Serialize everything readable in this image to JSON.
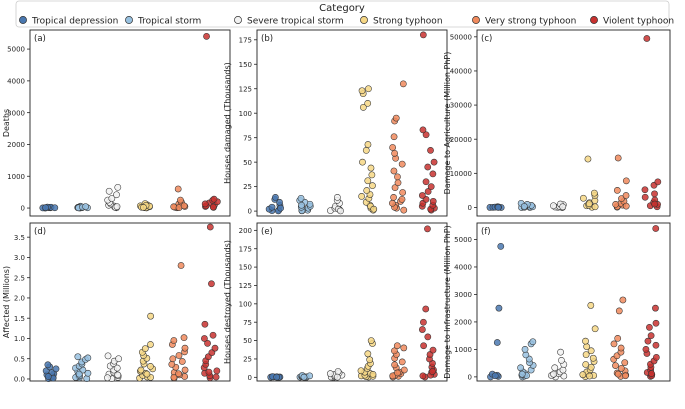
{
  "legend": {
    "title": "Category",
    "entries": [
      {
        "name": "Tropical depression",
        "color": "#4a78b0"
      },
      {
        "name": "Tropical storm",
        "color": "#98c1e0"
      },
      {
        "name": "Severe tropical storm",
        "color": "#f2f2f2"
      },
      {
        "name": "Strong typhoon",
        "color": "#f6d785"
      },
      {
        "name": "Very strong typhoon",
        "color": "#f08a5d"
      },
      {
        "name": "Violent typhoon",
        "color": "#c8312f"
      }
    ]
  },
  "chart_data": [
    {
      "type": "scatter",
      "panel": "(a)",
      "ylabel": "Deaths",
      "ylim": [
        -250,
        5600
      ],
      "yticks": [
        0,
        1000,
        2000,
        3000,
        4000,
        5000
      ],
      "yticklabels": [
        "0",
        "1000",
        "2000",
        "3000",
        "4000",
        "5000"
      ],
      "series": [
        {
          "name": "Tropical depression",
          "values": [
            2,
            5,
            8,
            12,
            18,
            25,
            30,
            10,
            4,
            15
          ]
        },
        {
          "name": "Tropical storm",
          "values": [
            3,
            8,
            15,
            25,
            40,
            55,
            12,
            20,
            6,
            30,
            10,
            45
          ]
        },
        {
          "name": "Severe tropical storm",
          "values": [
            10,
            30,
            60,
            90,
            130,
            180,
            250,
            300,
            420,
            530,
            650,
            20,
            45
          ]
        },
        {
          "name": "Strong typhoon",
          "values": [
            5,
            15,
            30,
            50,
            70,
            100,
            140,
            40,
            25,
            10,
            60,
            85,
            20
          ]
        },
        {
          "name": "Very strong typhoon",
          "values": [
            10,
            25,
            50,
            90,
            130,
            180,
            250,
            600,
            40,
            15,
            70
          ]
        },
        {
          "name": "Violent typhoon",
          "values": [
            20,
            50,
            100,
            160,
            200,
            240,
            280,
            30,
            70,
            130,
            5400
          ]
        }
      ]
    },
    {
      "type": "scatter",
      "panel": "(b)",
      "ylabel": "Houses damaged (Thousands)",
      "ylim": [
        -5,
        185
      ],
      "yticks": [
        0,
        25,
        50,
        75,
        100,
        125,
        150,
        175
      ],
      "yticklabels": [
        "0",
        "25",
        "50",
        "75",
        "100",
        "125",
        "150",
        "175"
      ],
      "series": [
        {
          "name": "Tropical depression",
          "values": [
            0.5,
            1,
            2,
            4,
            6,
            9,
            12,
            14,
            0.2,
            3
          ]
        },
        {
          "name": "Tropical storm",
          "values": [
            0.3,
            1,
            2,
            3,
            5,
            7,
            9,
            11,
            13,
            0.5,
            4,
            6
          ]
        },
        {
          "name": "Severe tropical storm",
          "values": [
            0.5,
            1.5,
            3,
            5,
            8,
            11,
            14,
            2,
            0.2
          ]
        },
        {
          "name": "Strong typhoon",
          "values": [
            1,
            3,
            6,
            9,
            13,
            17,
            21,
            26,
            31,
            37,
            44,
            50,
            62,
            68,
            106,
            110,
            120,
            123,
            125,
            5,
            2,
            15
          ]
        },
        {
          "name": "Very strong typhoon",
          "values": [
            1,
            3,
            6,
            10,
            14,
            19,
            24,
            29,
            35,
            41,
            48,
            54,
            59,
            65,
            76,
            92,
            95,
            130,
            4,
            8,
            12
          ]
        },
        {
          "name": "Violent typhoon",
          "values": [
            1,
            3,
            5,
            8,
            12,
            16,
            20,
            25,
            30,
            38,
            45,
            50,
            62,
            78,
            83,
            180,
            2,
            6,
            10
          ]
        }
      ]
    },
    {
      "type": "scatter",
      "panel": "(c)",
      "ylabel": "Damage to Agriculture (Million PhP)",
      "ylim": [
        -2500,
        52000
      ],
      "yticks": [
        0,
        10000,
        20000,
        30000,
        40000,
        50000
      ],
      "yticklabels": [
        "0",
        "10000",
        "20000",
        "30000",
        "40000",
        "50000"
      ],
      "series": [
        {
          "name": "Tropical depression",
          "values": [
            0,
            10,
            30,
            60,
            100,
            200,
            150,
            20
          ]
        },
        {
          "name": "Tropical storm",
          "values": [
            0,
            20,
            50,
            100,
            200,
            400,
            600,
            900,
            1200,
            300
          ]
        },
        {
          "name": "Severe tropical storm",
          "values": [
            0,
            30,
            80,
            150,
            300,
            500,
            800,
            1000,
            200
          ]
        },
        {
          "name": "Strong typhoon",
          "values": [
            50,
            200,
            500,
            900,
            1400,
            2000,
            2700,
            3500,
            4200,
            14200,
            600,
            1100
          ]
        },
        {
          "name": "Very strong typhoon",
          "values": [
            100,
            300,
            700,
            1200,
            1800,
            2600,
            3500,
            5000,
            7800,
            14500,
            900,
            400
          ]
        },
        {
          "name": "Violent typhoon",
          "values": [
            200,
            500,
            900,
            1500,
            2200,
            3000,
            4000,
            5200,
            6500,
            7500,
            49500,
            1000
          ]
        }
      ]
    },
    {
      "type": "scatter",
      "panel": "(d)",
      "ylabel": "Affected (Millions)",
      "ylim": [
        -0.05,
        3.85
      ],
      "yticks": [
        0,
        0.5,
        1,
        1.5,
        2,
        2.5,
        3,
        3.5
      ],
      "yticklabels": [
        "0.0",
        "0.5",
        "1.0",
        "1.5",
        "2.0",
        "2.5",
        "3.0",
        "3.5"
      ],
      "series": [
        {
          "name": "Tropical depression",
          "values": [
            0.01,
            0.03,
            0.05,
            0.08,
            0.1,
            0.13,
            0.16,
            0.2,
            0.25,
            0.3,
            0.35,
            0.02,
            0.06
          ]
        },
        {
          "name": "Tropical storm",
          "values": [
            0.01,
            0.03,
            0.06,
            0.1,
            0.14,
            0.18,
            0.22,
            0.27,
            0.32,
            0.37,
            0.42,
            0.48,
            0.52,
            0.55,
            0.04,
            0.08,
            0.12
          ]
        },
        {
          "name": "Severe tropical storm",
          "values": [
            0.01,
            0.04,
            0.08,
            0.12,
            0.17,
            0.22,
            0.27,
            0.32,
            0.38,
            0.44,
            0.5,
            0.57,
            0.03,
            0.1
          ]
        },
        {
          "name": "Strong typhoon",
          "values": [
            0.02,
            0.05,
            0.09,
            0.14,
            0.19,
            0.25,
            0.31,
            0.37,
            0.44,
            0.51,
            0.58,
            0.66,
            0.75,
            0.85,
            1.55,
            0.04,
            0.12,
            0.22
          ]
        },
        {
          "name": "Very strong typhoon",
          "values": [
            0.02,
            0.06,
            0.1,
            0.16,
            0.22,
            0.29,
            0.36,
            0.43,
            0.5,
            0.58,
            0.67,
            0.76,
            0.85,
            0.95,
            1.02,
            2.8,
            0.04,
            0.13
          ]
        },
        {
          "name": "Violent typhoon",
          "values": [
            0.03,
            0.08,
            0.14,
            0.2,
            0.28,
            0.36,
            0.45,
            0.55,
            0.65,
            0.76,
            0.88,
            1.0,
            1.08,
            1.35,
            2.35,
            3.75,
            0.05,
            0.17
          ]
        }
      ]
    },
    {
      "type": "scatter",
      "panel": "(e)",
      "ylabel": "Houses destroyed (Thousands)",
      "ylim": [
        -5,
        210
      ],
      "yticks": [
        0,
        25,
        50,
        75,
        100,
        125,
        150,
        175,
        200
      ],
      "yticklabels": [
        "0",
        "25",
        "50",
        "75",
        "100",
        "125",
        "150",
        "175",
        "200"
      ],
      "series": [
        {
          "name": "Tropical depression",
          "values": [
            0,
            0.2,
            0.4,
            0.6,
            0.8,
            1,
            0.1,
            0.3
          ]
        },
        {
          "name": "Tropical storm",
          "values": [
            0,
            0.3,
            0.6,
            1,
            1.5,
            2,
            2.5,
            0.2
          ]
        },
        {
          "name": "Severe tropical storm",
          "values": [
            0,
            0.5,
            1,
            2,
            3,
            4,
            5,
            6,
            8,
            0.3
          ]
        },
        {
          "name": "Strong typhoon",
          "values": [
            0.5,
            1,
            2,
            3,
            5,
            7,
            9,
            12,
            15,
            19,
            24,
            32,
            46,
            50,
            1.5,
            4
          ]
        },
        {
          "name": "Very strong typhoon",
          "values": [
            0.5,
            1.5,
            3,
            5,
            7,
            10,
            13,
            17,
            21,
            26,
            31,
            36,
            40,
            43,
            2,
            6
          ]
        },
        {
          "name": "Violent typhoon",
          "values": [
            0.5,
            2,
            4,
            7,
            10,
            14,
            19,
            25,
            31,
            37,
            43,
            55,
            65,
            75,
            93,
            202,
            3,
            8
          ]
        }
      ]
    },
    {
      "type": "scatter",
      "panel": "(f)",
      "ylabel": "Damage to Infrastructure (Million PhP)",
      "ylim": [
        -150,
        5600
      ],
      "yticks": [
        0,
        1000,
        2000,
        3000,
        4000,
        5000
      ],
      "yticklabels": [
        "0",
        "1000",
        "2000",
        "3000",
        "4000",
        "5000"
      ],
      "series": [
        {
          "name": "Tropical depression",
          "values": [
            0,
            20,
            60,
            100,
            1250,
            2500,
            4750,
            40
          ]
        },
        {
          "name": "Tropical storm",
          "values": [
            0,
            30,
            70,
            120,
            180,
            250,
            330,
            420,
            520,
            650,
            800,
            1000,
            1200,
            1280,
            50,
            100
          ]
        },
        {
          "name": "Severe tropical storm",
          "values": [
            0,
            30,
            70,
            120,
            180,
            250,
            330,
            450,
            600,
            900,
            50,
            100
          ]
        },
        {
          "name": "Strong typhoon",
          "values": [
            10,
            50,
            110,
            180,
            260,
            350,
            450,
            560,
            680,
            810,
            950,
            1100,
            1300,
            1750,
            2600,
            30,
            80
          ]
        },
        {
          "name": "Very strong typhoon",
          "values": [
            20,
            70,
            140,
            220,
            310,
            410,
            520,
            640,
            770,
            900,
            1050,
            1200,
            1400,
            2400,
            2800,
            40,
            100
          ]
        },
        {
          "name": "Violent typhoon",
          "values": [
            20,
            80,
            160,
            250,
            350,
            460,
            580,
            710,
            850,
            1000,
            1150,
            1300,
            1500,
            1800,
            1950,
            2500,
            5400,
            40,
            120
          ]
        }
      ]
    }
  ]
}
